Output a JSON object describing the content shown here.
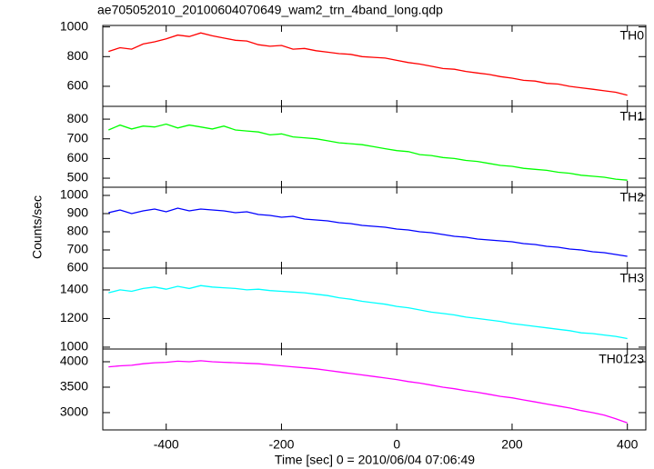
{
  "title": "ae705052010_20100604070649_wam2_trn_4band_long.qdp",
  "x_label": "Time [sec] 0 = 2010/06/04 07:06:49",
  "y_label": "Counts/sec",
  "chart_data": [
    {
      "type": "line",
      "label": "TH0",
      "color": "#ff0000",
      "x": [
        -500,
        -480,
        -460,
        -440,
        -420,
        -400,
        -380,
        -360,
        -340,
        -320,
        -300,
        -280,
        -260,
        -240,
        -220,
        -200,
        -180,
        -160,
        -140,
        -120,
        -100,
        -80,
        -60,
        -40,
        -20,
        0,
        20,
        40,
        60,
        80,
        100,
        120,
        140,
        160,
        180,
        200,
        220,
        240,
        260,
        280,
        300,
        320,
        340,
        360,
        380,
        400
      ],
      "values": [
        835,
        860,
        850,
        885,
        900,
        920,
        945,
        935,
        960,
        940,
        925,
        910,
        905,
        880,
        870,
        875,
        850,
        855,
        840,
        830,
        820,
        815,
        800,
        795,
        790,
        775,
        760,
        750,
        735,
        720,
        715,
        700,
        690,
        680,
        665,
        655,
        640,
        635,
        620,
        615,
        600,
        590,
        580,
        570,
        560,
        540
      ],
      "xlim": [
        -510,
        432
      ],
      "xticks": [
        -400,
        -200,
        0,
        200,
        400
      ],
      "ylim": [
        465,
        1010
      ],
      "yticks": [
        600,
        800,
        1000
      ]
    },
    {
      "type": "line",
      "label": "TH1",
      "color": "#00ff00",
      "x": [
        -500,
        -480,
        -460,
        -440,
        -420,
        -400,
        -380,
        -360,
        -340,
        -320,
        -300,
        -280,
        -260,
        -240,
        -220,
        -200,
        -180,
        -160,
        -140,
        -120,
        -100,
        -80,
        -60,
        -40,
        -20,
        0,
        20,
        40,
        60,
        80,
        100,
        120,
        140,
        160,
        180,
        200,
        220,
        240,
        260,
        280,
        300,
        320,
        340,
        360,
        380,
        400
      ],
      "values": [
        745,
        770,
        750,
        765,
        760,
        775,
        755,
        770,
        760,
        750,
        765,
        745,
        740,
        735,
        720,
        725,
        710,
        705,
        700,
        690,
        680,
        675,
        670,
        660,
        650,
        640,
        635,
        620,
        615,
        605,
        600,
        590,
        585,
        575,
        565,
        560,
        550,
        545,
        540,
        530,
        525,
        515,
        510,
        505,
        495,
        490
      ],
      "xlim": [
        -510,
        432
      ],
      "xticks": [
        -400,
        -200,
        0,
        200,
        400
      ],
      "ylim": [
        454,
        865
      ],
      "yticks": [
        500,
        600,
        700,
        800
      ]
    },
    {
      "type": "line",
      "label": "TH2",
      "color": "#0000ff",
      "x": [
        -500,
        -480,
        -460,
        -440,
        -420,
        -400,
        -380,
        -360,
        -340,
        -320,
        -300,
        -280,
        -260,
        -240,
        -220,
        -200,
        -180,
        -160,
        -140,
        -120,
        -100,
        -80,
        -60,
        -40,
        -20,
        0,
        20,
        40,
        60,
        80,
        100,
        120,
        140,
        160,
        180,
        200,
        220,
        240,
        260,
        280,
        300,
        320,
        340,
        360,
        380,
        400
      ],
      "values": [
        905,
        920,
        900,
        915,
        925,
        910,
        930,
        915,
        925,
        920,
        915,
        905,
        910,
        895,
        890,
        880,
        885,
        870,
        865,
        860,
        850,
        845,
        835,
        830,
        825,
        815,
        810,
        800,
        795,
        785,
        775,
        770,
        760,
        755,
        750,
        745,
        735,
        730,
        720,
        715,
        705,
        700,
        690,
        685,
        675,
        665
      ],
      "xlim": [
        -510,
        432
      ],
      "xticks": [
        -400,
        -200,
        0,
        200,
        400
      ],
      "ylim": [
        600,
        1045
      ],
      "yticks": [
        600,
        700,
        800,
        900,
        1000
      ]
    },
    {
      "type": "line",
      "label": "TH3",
      "color": "#00ffff",
      "x": [
        -500,
        -480,
        -460,
        -440,
        -420,
        -400,
        -380,
        -360,
        -340,
        -320,
        -300,
        -280,
        -260,
        -240,
        -220,
        -200,
        -180,
        -160,
        -140,
        -120,
        -100,
        -80,
        -60,
        -40,
        -20,
        0,
        20,
        40,
        60,
        80,
        100,
        120,
        140,
        160,
        180,
        200,
        220,
        240,
        260,
        280,
        300,
        320,
        340,
        360,
        380,
        400
      ],
      "values": [
        1380,
        1400,
        1390,
        1410,
        1420,
        1405,
        1425,
        1410,
        1430,
        1420,
        1415,
        1410,
        1400,
        1405,
        1395,
        1390,
        1385,
        1380,
        1370,
        1360,
        1345,
        1335,
        1320,
        1310,
        1300,
        1285,
        1275,
        1260,
        1245,
        1235,
        1225,
        1210,
        1200,
        1190,
        1180,
        1165,
        1155,
        1145,
        1135,
        1125,
        1115,
        1100,
        1095,
        1085,
        1075,
        1060
      ],
      "xlim": [
        -510,
        432
      ],
      "xticks": [
        -400,
        -200,
        0,
        200,
        400
      ],
      "ylim": [
        987,
        1552
      ],
      "yticks": [
        1000,
        1200,
        1400
      ]
    },
    {
      "type": "line",
      "label": "TH0123",
      "color": "#ff00ff",
      "x": [
        -500,
        -480,
        -460,
        -440,
        -420,
        -400,
        -380,
        -360,
        -340,
        -320,
        -300,
        -280,
        -260,
        -240,
        -220,
        -200,
        -180,
        -160,
        -140,
        -120,
        -100,
        -80,
        -60,
        -40,
        -20,
        0,
        20,
        40,
        60,
        80,
        100,
        120,
        140,
        160,
        180,
        200,
        220,
        240,
        260,
        280,
        300,
        320,
        340,
        360,
        380,
        400
      ],
      "values": [
        3900,
        3920,
        3930,
        3960,
        3980,
        3990,
        4010,
        4000,
        4020,
        4000,
        3990,
        3980,
        3970,
        3960,
        3940,
        3920,
        3900,
        3880,
        3860,
        3830,
        3800,
        3770,
        3740,
        3710,
        3680,
        3650,
        3610,
        3580,
        3540,
        3500,
        3470,
        3430,
        3400,
        3360,
        3320,
        3290,
        3250,
        3210,
        3170,
        3130,
        3090,
        3040,
        3000,
        2950,
        2880,
        2800
      ],
      "xlim": [
        -510,
        432
      ],
      "xticks": [
        -400,
        -200,
        0,
        200,
        400
      ],
      "ylim": [
        2660,
        4250
      ],
      "yticks": [
        3000,
        3500,
        4000
      ]
    }
  ]
}
